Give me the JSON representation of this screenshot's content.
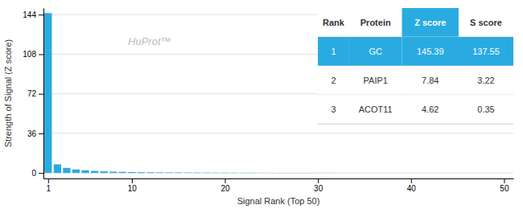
{
  "chart_data": {
    "type": "bar",
    "xlabel": "Signal Rank (Top 50)",
    "ylabel": "Strength of Signal (Z score)",
    "annotations": [
      {
        "text": "HuProt™"
      }
    ],
    "x": [
      1,
      2,
      3,
      4,
      5,
      6,
      7,
      8,
      9,
      10,
      11,
      12,
      13,
      14,
      15,
      16,
      17,
      18,
      19,
      20,
      21,
      22,
      23,
      24,
      25,
      26,
      27,
      28,
      29,
      30,
      31,
      32,
      33,
      34,
      35,
      36,
      37,
      38,
      39,
      40,
      41,
      42,
      43,
      44,
      45,
      46,
      47,
      48,
      49,
      50
    ],
    "values": [
      145.39,
      7.84,
      4.62,
      3.2,
      2.4,
      1.9,
      1.5,
      1.2,
      1.0,
      0.85,
      0.72,
      0.62,
      0.54,
      0.48,
      0.43,
      0.38,
      0.34,
      0.3,
      0.27,
      0.24,
      0.22,
      0.2,
      0.18,
      0.16,
      0.14,
      0.13,
      0.11,
      0.1,
      0.09,
      0.08,
      0.07,
      0.06,
      0.05,
      0.04,
      0.03,
      0.02,
      0.01,
      0.0,
      -0.01,
      -0.02,
      -0.02,
      -0.03,
      -0.03,
      -0.03,
      -0.04,
      -0.04,
      -0.04,
      -0.04,
      -0.04,
      -0.05
    ],
    "color": "#29ABE2",
    "xlim": [
      0.5,
      51
    ],
    "xticks": [
      1,
      10,
      20,
      30,
      40,
      50
    ],
    "ylim": [
      -5,
      150
    ],
    "yticks": [
      0,
      36,
      72,
      108,
      144
    ],
    "grid": true,
    "table": {
      "headers": [
        "Rank",
        "Protein",
        "Z score",
        "S score"
      ],
      "rows": [
        [
          "1",
          "GC",
          "145.39",
          "137.55"
        ],
        [
          "2",
          "PAIP1",
          "7.84",
          "3.22"
        ],
        [
          "3",
          "ACOT11",
          "4.62",
          "0.35"
        ]
      ]
    }
  }
}
